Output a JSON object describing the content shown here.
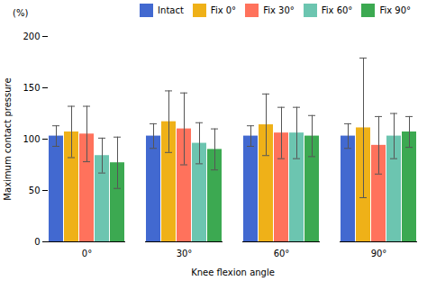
{
  "chart_data": {
    "type": "bar",
    "categories": [
      "0°",
      "30°",
      "60°",
      "90°"
    ],
    "series": [
      {
        "name": "Intact",
        "values": [
          103,
          103,
          103,
          103
        ],
        "errors": [
          10,
          12,
          10,
          12
        ]
      },
      {
        "name": "Fix 0°",
        "values": [
          107,
          117,
          114,
          111
        ],
        "errors": [
          25,
          30,
          30,
          68
        ]
      },
      {
        "name": "Fix 30°",
        "values": [
          105,
          110,
          106,
          94
        ],
        "errors": [
          27,
          35,
          25,
          28
        ]
      },
      {
        "name": "Fix 60°",
        "values": [
          84,
          96,
          106,
          103
        ],
        "errors": [
          17,
          20,
          25,
          22
        ]
      },
      {
        "name": "Fix 90°",
        "values": [
          77,
          90,
          103,
          107
        ],
        "errors": [
          25,
          20,
          20,
          15
        ]
      }
    ],
    "ylabel": "Maximum contact pressure",
    "xlabel": "Knee flexion angle",
    "annotations": [
      "(%)"
    ],
    "ylim": [
      0,
      200
    ],
    "yticks": [
      0,
      50,
      100,
      150,
      200
    ],
    "grid": false,
    "legend": "upper right"
  }
}
